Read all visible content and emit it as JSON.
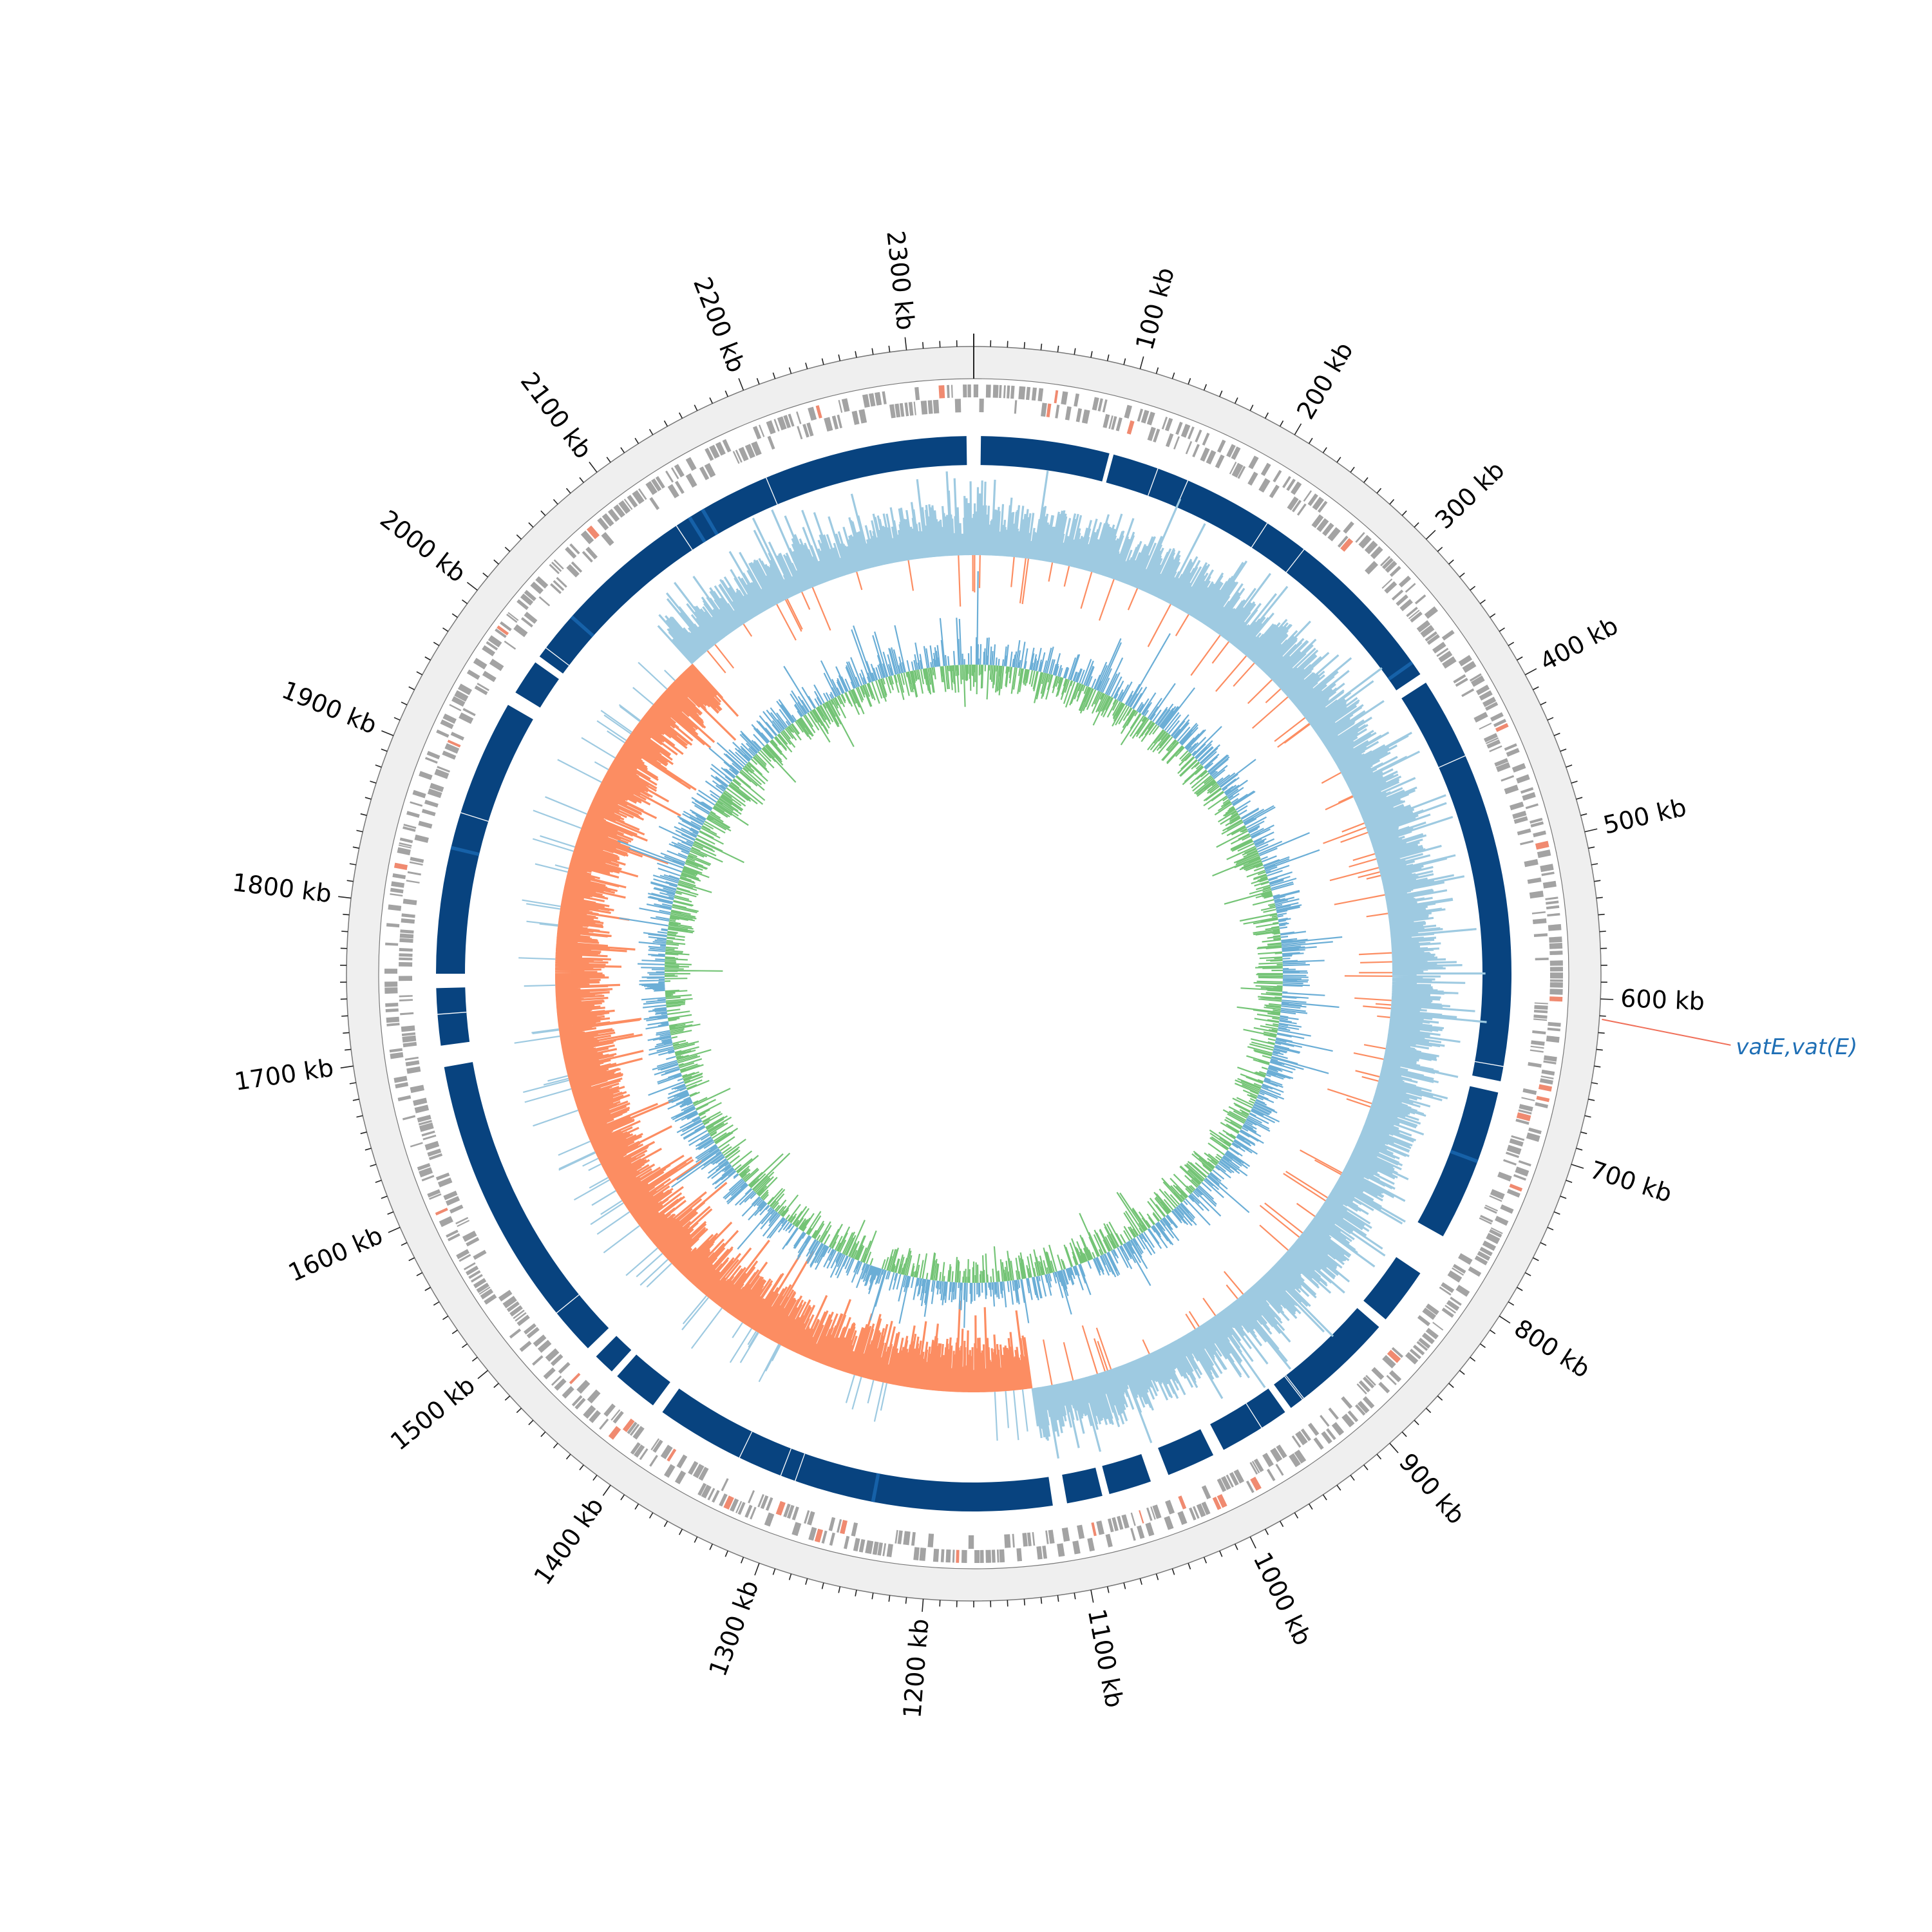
{
  "genome": {
    "length_kb": 2340,
    "ticks": [
      {
        "kb": 100,
        "label": "100 kb"
      },
      {
        "kb": 200,
        "label": "200 kb"
      },
      {
        "kb": 300,
        "label": "300 kb"
      },
      {
        "kb": 400,
        "label": "400 kb"
      },
      {
        "kb": 500,
        "label": "500 kb"
      },
      {
        "kb": 600,
        "label": "600 kb"
      },
      {
        "kb": 700,
        "label": "700 kb"
      },
      {
        "kb": 800,
        "label": "800 kb"
      },
      {
        "kb": 900,
        "label": "900 kb"
      },
      {
        "kb": 1000,
        "label": "1000 kb"
      },
      {
        "kb": 1100,
        "label": "1100 kb"
      },
      {
        "kb": 1200,
        "label": "1200 kb"
      },
      {
        "kb": 1300,
        "label": "1300 kb"
      },
      {
        "kb": 1400,
        "label": "1400 kb"
      },
      {
        "kb": 1500,
        "label": "1500 kb"
      },
      {
        "kb": 1600,
        "label": "1600 kb"
      },
      {
        "kb": 1700,
        "label": "1700 kb"
      },
      {
        "kb": 1800,
        "label": "1800 kb"
      },
      {
        "kb": 1900,
        "label": "1900 kb"
      },
      {
        "kb": 2000,
        "label": "2000 kb"
      },
      {
        "kb": 2100,
        "label": "2100 kb"
      },
      {
        "kb": 2200,
        "label": "2200 kb"
      },
      {
        "kb": 2300,
        "label": "2300 kb"
      }
    ]
  },
  "blast_hit_blocks_kb": [
    [
      5,
      95
    ],
    [
      98,
      365
    ],
    [
      372,
      660
    ],
    [
      668,
      775
    ],
    [
      805,
      845
    ],
    [
      852,
      935
    ],
    [
      940,
      990
    ],
    [
      998,
      1032
    ],
    [
      1045,
      1075
    ],
    [
      1080,
      1105
    ],
    [
      1115,
      1400
    ],
    [
      1408,
      1440
    ],
    [
      1445,
      1460
    ],
    [
      1468,
      1690
    ],
    [
      1705,
      1745
    ],
    [
      1755,
      1950
    ],
    [
      1960,
      1985
    ],
    [
      1990,
      2335
    ]
  ],
  "annotations": [
    {
      "kb": 612,
      "label": "vatE,vat(E)",
      "color": "#1f6fb5"
    }
  ],
  "colors": {
    "ring_background": "#efefef",
    "gene_features": "#a3a3a3",
    "gene_highlight": "#f08a70",
    "blast_hits": "#08437f",
    "blast_hits_light": "#1661a8",
    "gc_skew_positive": "#9ecae1",
    "gc_skew_negative": "#fc8d62",
    "gc_content_outer": "#6baed6",
    "gc_content_inner": "#74c476",
    "annotation_line": "#f0705a"
  }
}
